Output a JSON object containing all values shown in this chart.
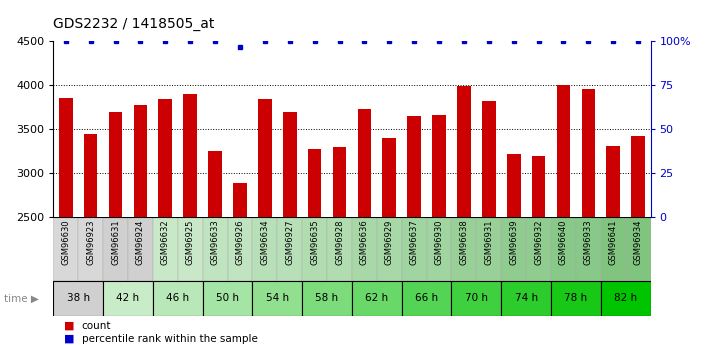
{
  "title": "GDS2232 / 1418505_at",
  "categories": [
    "GSM96630",
    "GSM96923",
    "GSM96631",
    "GSM96924",
    "GSM96632",
    "GSM96925",
    "GSM96633",
    "GSM96926",
    "GSM96634",
    "GSM96927",
    "GSM96635",
    "GSM96928",
    "GSM96636",
    "GSM96929",
    "GSM96637",
    "GSM96930",
    "GSM96638",
    "GSM96931",
    "GSM96639",
    "GSM96932",
    "GSM96640",
    "GSM96933",
    "GSM96641",
    "GSM96934"
  ],
  "bar_values": [
    3860,
    3450,
    3700,
    3780,
    3840,
    3900,
    3250,
    2890,
    3840,
    3700,
    3280,
    3300,
    3730,
    3400,
    3650,
    3660,
    3990,
    3820,
    3220,
    3200,
    4010,
    3960,
    3310,
    3430
  ],
  "percentile_values": [
    100,
    100,
    100,
    100,
    100,
    100,
    100,
    97,
    100,
    100,
    100,
    100,
    100,
    100,
    100,
    100,
    100,
    100,
    100,
    100,
    100,
    100,
    100,
    100
  ],
  "time_groups": [
    {
      "label": "38 h",
      "indices": [
        0,
        1
      ]
    },
    {
      "label": "42 h",
      "indices": [
        2,
        3
      ]
    },
    {
      "label": "46 h",
      "indices": [
        4,
        5
      ]
    },
    {
      "label": "50 h",
      "indices": [
        6,
        7
      ]
    },
    {
      "label": "54 h",
      "indices": [
        8,
        9
      ]
    },
    {
      "label": "58 h",
      "indices": [
        10,
        11
      ]
    },
    {
      "label": "62 h",
      "indices": [
        12,
        13
      ]
    },
    {
      "label": "66 h",
      "indices": [
        14,
        15
      ]
    },
    {
      "label": "70 h",
      "indices": [
        16,
        17
      ]
    },
    {
      "label": "74 h",
      "indices": [
        18,
        19
      ]
    },
    {
      "label": "78 h",
      "indices": [
        20,
        21
      ]
    },
    {
      "label": "82 h",
      "indices": [
        22,
        23
      ]
    }
  ],
  "time_colors": [
    "#d0d0d0",
    "#c8ecc8",
    "#b8e8b8",
    "#a4e4a4",
    "#90e090",
    "#7cdc7c",
    "#68d868",
    "#54d454",
    "#3fd03f",
    "#2bcc2b",
    "#17c817",
    "#00c400"
  ],
  "gsm_bg_colors": [
    "#d8d8d8",
    "#d8d8d8",
    "#d0d0d0",
    "#d0d0d0",
    "#c8e8c8",
    "#c8e8c8",
    "#c0e4c0",
    "#c0e4c0",
    "#b8e0b8",
    "#b8e0b8",
    "#b0dcb0",
    "#b0dcb0",
    "#a8d8a8",
    "#a8d8a8",
    "#a0d4a0",
    "#a0d4a0",
    "#98d098",
    "#98d098",
    "#90cc90",
    "#90cc90",
    "#88c888",
    "#88c888",
    "#80c480",
    "#80c480"
  ],
  "ylim_left": [
    2500,
    4500
  ],
  "ylim_right": [
    0,
    100
  ],
  "bar_color": "#cc0000",
  "percentile_color": "#0000cc",
  "title_fontsize": 10,
  "axis_fontsize": 8,
  "tick_fontsize": 7
}
